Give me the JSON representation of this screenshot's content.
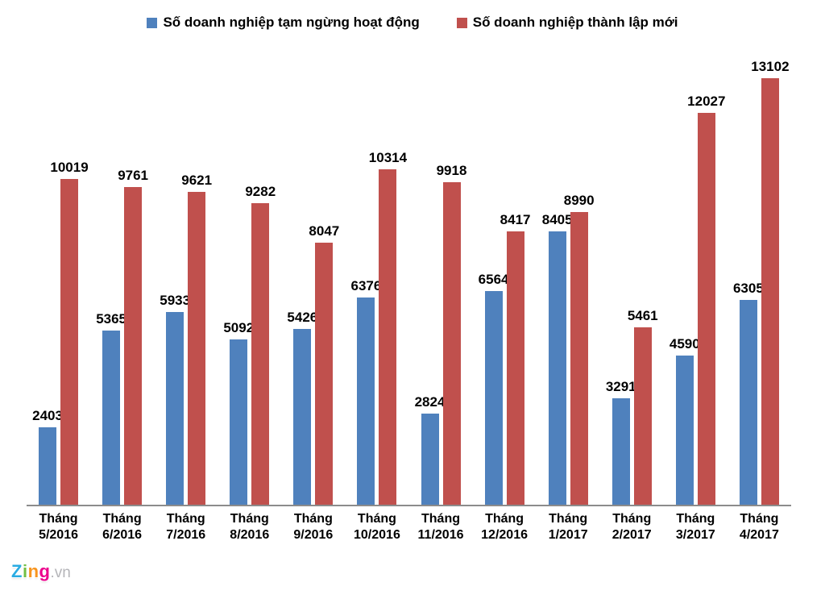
{
  "legend": {
    "series1": "Số doanh nghiệp tạm ngừng hoạt động",
    "series2": "Số doanh nghiệp thành lập mới"
  },
  "colors": {
    "series1": "#4f81bd",
    "series2": "#c0504d",
    "axis": "#8c8c8c",
    "label_text": "#000000"
  },
  "chart_data": {
    "type": "bar",
    "title": "",
    "xlabel": "",
    "ylabel": "",
    "categories": [
      "Tháng 5/2016",
      "Tháng 6/2016",
      "Tháng 7/2016",
      "Tháng 8/2016",
      "Tháng 9/2016",
      "Tháng 10/2016",
      "Tháng 11/2016",
      "Tháng 12/2016",
      "Tháng 1/2017",
      "Tháng 2/2017",
      "Tháng 3/2017",
      "Tháng 4/2017"
    ],
    "series": [
      {
        "name": "Số doanh nghiệp tạm ngừng hoạt động",
        "color": "#4f81bd",
        "values": [
          2403,
          5365,
          5933,
          5092,
          5426,
          6376,
          2824,
          6564,
          8405,
          3291,
          4590,
          6305
        ]
      },
      {
        "name": "Số doanh nghiệp thành lập mới",
        "color": "#c0504d",
        "values": [
          10019,
          9761,
          9621,
          9282,
          8047,
          10314,
          9918,
          8417,
          8990,
          5461,
          12027,
          13102
        ]
      }
    ],
    "ylim": [
      0,
      13102
    ],
    "grid": false,
    "legend_position": "top",
    "data_labels": true,
    "axis_ticks_visible": false
  },
  "logo": {
    "letters": [
      {
        "char": "Z",
        "color": "#29abe2"
      },
      {
        "char": "i",
        "color": "#72bf44"
      },
      {
        "char": "n",
        "color": "#f7941e"
      },
      {
        "char": "g",
        "color": "#ec008c"
      }
    ],
    "suffix": ".vn",
    "suffix_color": "#b5b5b9"
  }
}
